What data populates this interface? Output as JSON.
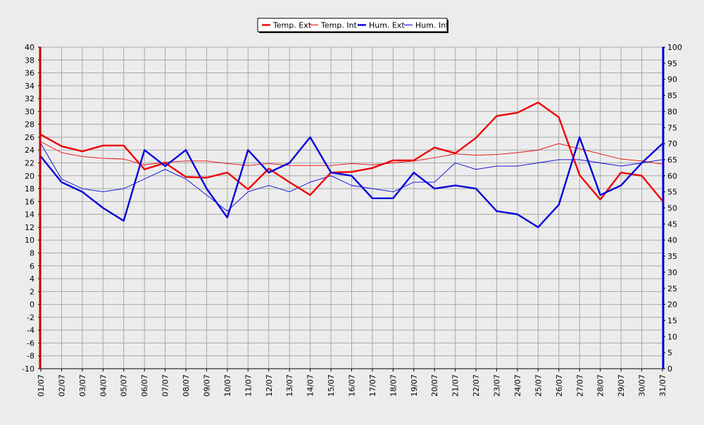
{
  "chart_data": {
    "type": "line",
    "title": "",
    "xlabel": "",
    "ylabel": "",
    "y2label": "",
    "grid": true,
    "legend_position": "top-center",
    "categories": [
      "01/07",
      "02/07",
      "03/07",
      "04/07",
      "05/07",
      "06/07",
      "07/07",
      "08/07",
      "09/07",
      "10/07",
      "11/07",
      "12/07",
      "13/07",
      "14/07",
      "15/07",
      "16/07",
      "17/07",
      "18/07",
      "19/07",
      "20/07",
      "21/07",
      "22/07",
      "23/07",
      "24/07",
      "25/07",
      "26/07",
      "27/07",
      "28/07",
      "29/07",
      "30/07",
      "31/07"
    ],
    "y_left": {
      "min": -10,
      "max": 40,
      "step": 2,
      "ticks": [
        "40",
        "38",
        "36",
        "34",
        "32",
        "30",
        "28",
        "26",
        "24",
        "22",
        "20",
        "18",
        "16",
        "14",
        "12",
        "10",
        "8",
        "6",
        "4",
        "2",
        "0",
        "-2",
        "-4",
        "-6",
        "-8",
        "-10"
      ]
    },
    "y_right": {
      "min": 0,
      "max": 100,
      "step": 5,
      "ticks": [
        "100",
        "95",
        "90",
        "85",
        "80",
        "75",
        "70",
        "65",
        "60",
        "55",
        "50",
        "45",
        "40",
        "35",
        "30",
        "25",
        "20",
        "15",
        "10",
        "5",
        "0"
      ]
    },
    "series": [
      {
        "name": "Temp. Ext",
        "axis": "left",
        "color": "#ee0000",
        "width": "thick",
        "values": [
          26.4,
          24.6,
          23.8,
          24.7,
          24.7,
          21.0,
          22.0,
          19.8,
          19.7,
          20.5,
          17.9,
          21.1,
          19.0,
          17.0,
          20.5,
          20.6,
          21.2,
          22.4,
          22.4,
          24.4,
          23.5,
          25.9,
          29.3,
          29.8,
          31.4,
          29.1,
          20.1,
          16.3,
          20.5,
          20.0,
          16.1
        ]
      },
      {
        "name": "Temp. Int",
        "axis": "left",
        "color": "#ee0000",
        "width": "thin",
        "values": [
          25.3,
          23.6,
          23.0,
          22.7,
          22.6,
          21.7,
          22.1,
          22.3,
          22.3,
          21.9,
          21.6,
          21.9,
          21.6,
          21.6,
          21.6,
          21.9,
          21.7,
          22.0,
          22.3,
          22.8,
          23.4,
          23.2,
          23.3,
          23.6,
          24.0,
          25.0,
          24.2,
          23.4,
          22.6,
          22.3,
          21.8
        ]
      },
      {
        "name": "Hum. Ext",
        "axis": "right",
        "color": "#0000dd",
        "width": "thick",
        "values": [
          66,
          58,
          55,
          50,
          46,
          68,
          63,
          68,
          56,
          47,
          68,
          61,
          64,
          72,
          61,
          60,
          53,
          53,
          61,
          56,
          57,
          56,
          49,
          48,
          44,
          51,
          72,
          54,
          57,
          64,
          70
        ]
      },
      {
        "name": "Hum. Int",
        "axis": "right",
        "color": "#0000dd",
        "width": "thin",
        "values": [
          70,
          59,
          56,
          55,
          56,
          59,
          62,
          59,
          54,
          49,
          55,
          57,
          55,
          58,
          60,
          57,
          56,
          55,
          58,
          58,
          64,
          62,
          63,
          63,
          64,
          65,
          65,
          64,
          63,
          64,
          65
        ]
      }
    ]
  }
}
